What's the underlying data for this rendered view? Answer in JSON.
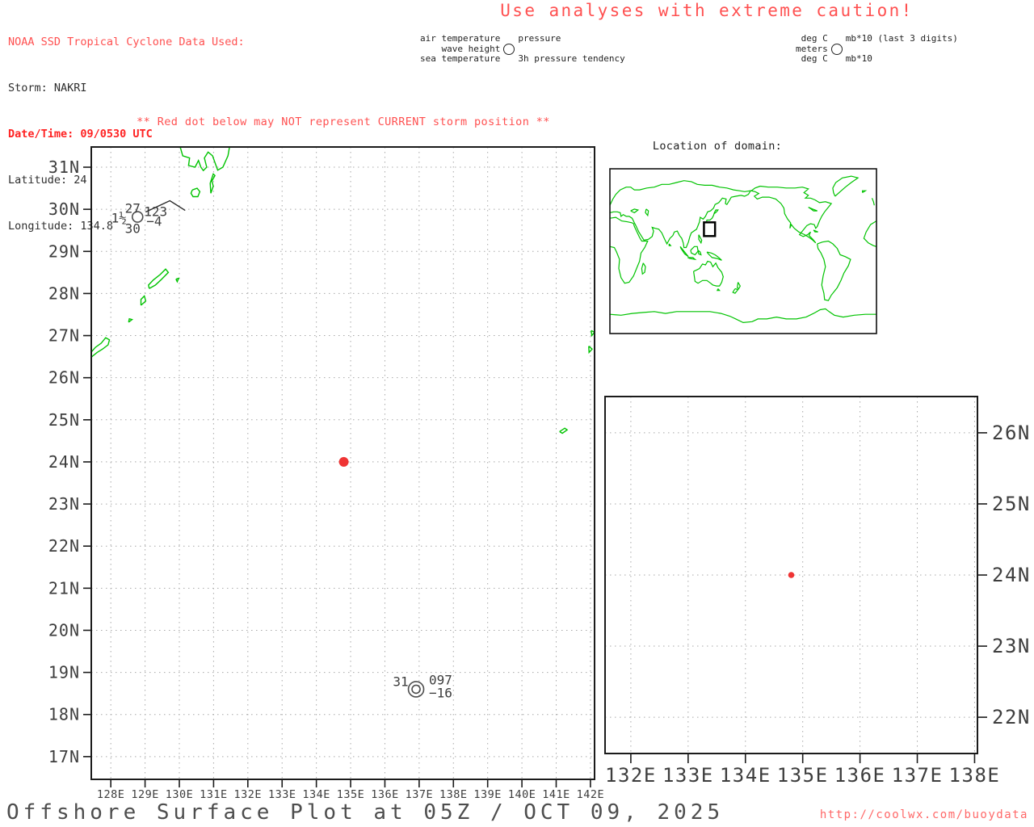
{
  "colors": {
    "warning_red": "#ff5050",
    "alert_red": "#ff2121",
    "link_red": "#ff6868",
    "coastline_green": "#00c300",
    "storm_dot_red": "#ef3434",
    "axis_ink": "#3d3d3d",
    "grid_gray": "#a8a8a8",
    "box_ink": "#1b1b1b"
  },
  "storm_info": {
    "source": "NOAA SSD Tropical Cyclone Data Used:",
    "storm": "Storm: NAKRI",
    "datetime": "Date/Time: 09/0530 UTC",
    "latitude": "Latitude: 24",
    "longitude": "Longitude: 134.8"
  },
  "caution": "Use analyses with extreme caution!",
  "station_legend": {
    "left": [
      "air temperature",
      "wave height",
      "sea temperature"
    ],
    "right_top": "pressure",
    "right_bottom": "3h pressure tendency"
  },
  "units_legend": {
    "left": [
      "deg C",
      "meters",
      "deg C"
    ],
    "right_top": "mb*10 (last 3 digits)",
    "right_bottom": "mb*10"
  },
  "warning": "** Red dot below may NOT represent CURRENT storm position **",
  "inset": {
    "title": "Location of domain:",
    "domain_box": {
      "lon": [
        127,
        142
      ],
      "lat": [
        16.5,
        31.5
      ]
    }
  },
  "footer": {
    "title": "Offshore Surface Plot at 05Z / OCT 09, 2025",
    "url": "http://coolwx.com/buoydata"
  },
  "chart_data": [
    {
      "type": "scatter",
      "name": "main-surface-plot",
      "x_range": [
        127.43,
        142.12
      ],
      "y_range": [
        16.46,
        31.48
      ],
      "x_ticks": {
        "values": [
          128,
          129,
          130,
          131,
          132,
          133,
          134,
          135,
          136,
          137,
          138,
          139,
          140,
          141,
          142
        ],
        "labels": [
          "128E",
          "129E",
          "130E",
          "131E",
          "132E",
          "133E",
          "134E",
          "135E",
          "136E",
          "137E",
          "138E",
          "139E",
          "140E",
          "141E",
          "142E"
        ]
      },
      "y_ticks": {
        "values": [
          17,
          18,
          19,
          20,
          21,
          22,
          23,
          24,
          25,
          26,
          27,
          28,
          29,
          30,
          31
        ],
        "labels": [
          "17N",
          "18N",
          "19N",
          "20N",
          "21N",
          "22N",
          "23N",
          "24N",
          "25N",
          "26N",
          "27N",
          "28N",
          "29N",
          "30N",
          "31N"
        ]
      },
      "grid": true,
      "storm_point": {
        "lon": 134.8,
        "lat": 24.0
      },
      "stations": [
        {
          "lon": 128.78,
          "lat": 29.82,
          "symbol": "circle",
          "wind_barb": true,
          "air_temp": "27",
          "wave_height": "1½",
          "sea_temp": "30",
          "pressure": "123",
          "pressure_tendency": "−4"
        },
        {
          "lon": 136.91,
          "lat": 18.6,
          "symbol": "double-circle",
          "wind_barb": false,
          "air_temp": "31",
          "pressure": "097",
          "pressure_tendency": "−16"
        }
      ]
    },
    {
      "type": "scatter",
      "name": "zoom-surface-plot",
      "x_range": [
        131.55,
        138.05
      ],
      "y_range": [
        21.49,
        26.51
      ],
      "x_ticks": {
        "values": [
          132,
          133,
          134,
          135,
          136,
          137,
          138
        ],
        "labels": [
          "132E",
          "133E",
          "134E",
          "135E",
          "136E",
          "137E",
          "138E"
        ]
      },
      "y_ticks": {
        "values": [
          22,
          23,
          24,
          25,
          26
        ],
        "labels": [
          "22N",
          "23N",
          "24N",
          "25N",
          "26N"
        ]
      },
      "grid": true,
      "storm_point": {
        "lon": 134.8,
        "lat": 24.0
      }
    }
  ]
}
